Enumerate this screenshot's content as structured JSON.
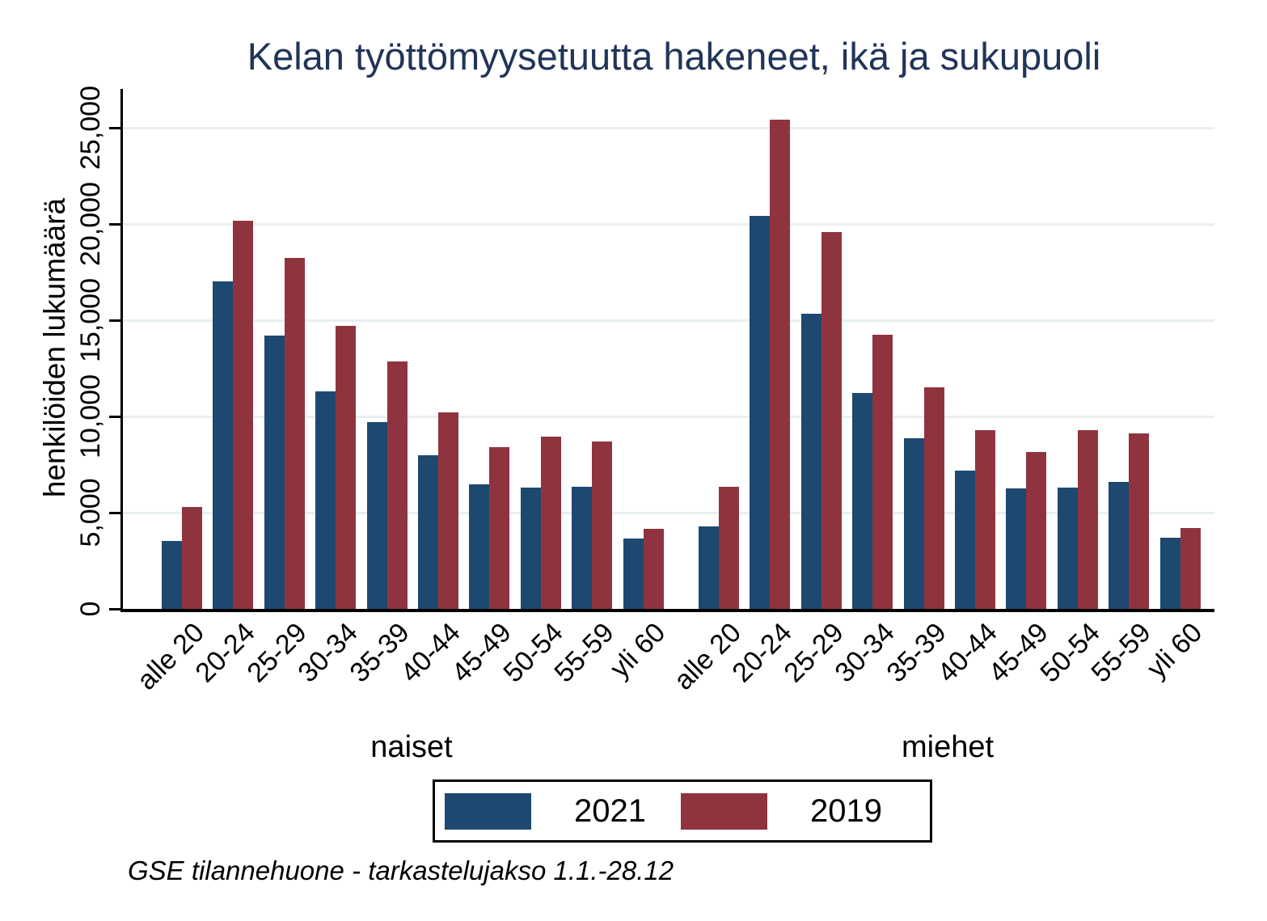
{
  "title": "Kelan työttömyysetuutta hakeneet, ikä ja sukupuoli",
  "footer": "GSE tilannehuone - tarkastelujakso 1.1.-28.12",
  "y_axis": {
    "label": "henkilöiden lukumäärä",
    "ticks": [
      "0",
      "5,000",
      "10,000",
      "15,000",
      "20,000",
      "25,000"
    ]
  },
  "legend": {
    "items": [
      {
        "label": "2021",
        "color": "#1d4970"
      },
      {
        "label": "2019",
        "color": "#8f343e"
      }
    ]
  },
  "colors": {
    "series_2021": "#1d4970",
    "series_2019": "#8f343e",
    "title_text": "#213459",
    "gridline": "#e9eff1",
    "axis": "#000000",
    "background": "#ffffff"
  },
  "chart_data": {
    "type": "bar",
    "title": "Kelan työttömyysetuutta hakeneet, ikä ja sukupuoli",
    "xlabel": "",
    "ylabel": "henkilöiden lukumäärä",
    "ylim": [
      0,
      27000
    ],
    "grid": "horizontal",
    "gridline_step": 5000,
    "y_ticks": [
      "0",
      "5,000",
      "10,000",
      "15,000",
      "20,000",
      "25,000"
    ],
    "legend_position": "bottom-center",
    "categories": [
      "alle 20",
      "20-24",
      "25-29",
      "30-34",
      "35-39",
      "40-44",
      "45-49",
      "50-54",
      "55-59",
      "yli 60"
    ],
    "groups": [
      {
        "label": "naiset",
        "series": [
          {
            "name": "2021",
            "color": "#1d4970",
            "values": [
              3550,
              17000,
              14200,
              11300,
              9700,
              8000,
              6450,
              6300,
              6350,
              3650
            ]
          },
          {
            "name": "2019",
            "color": "#8f343e",
            "values": [
              5300,
              20150,
              18250,
              14700,
              12850,
              10200,
              8400,
              8950,
              8700,
              4150
            ]
          }
        ]
      },
      {
        "label": "miehet",
        "series": [
          {
            "name": "2021",
            "color": "#1d4970",
            "values": [
              4300,
              20400,
              15350,
              11200,
              8850,
              7200,
              6250,
              6300,
              6600,
              3700
            ]
          },
          {
            "name": "2019",
            "color": "#8f343e",
            "values": [
              6350,
              25400,
              19600,
              14250,
              11500,
              9300,
              8150,
              9300,
              9100,
              4200
            ]
          }
        ]
      }
    ]
  }
}
